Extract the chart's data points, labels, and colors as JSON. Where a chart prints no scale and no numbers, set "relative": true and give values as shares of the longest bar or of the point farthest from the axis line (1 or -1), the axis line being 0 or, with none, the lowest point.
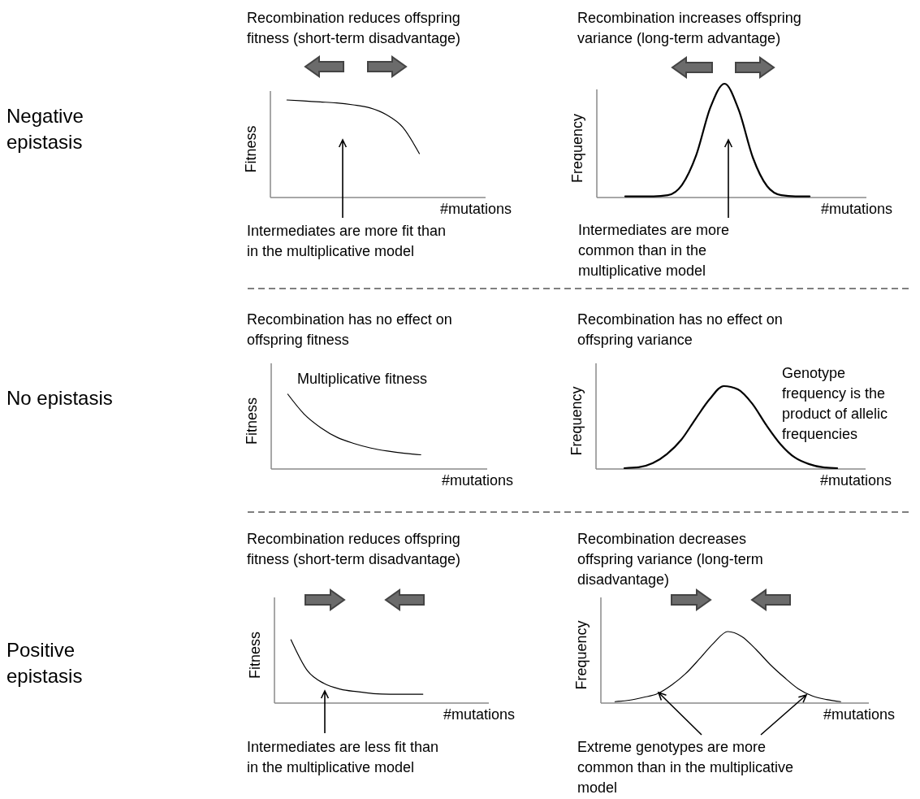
{
  "chart_data": [
    {
      "type": "line",
      "relative": true,
      "title": "Recombination reduces offspring\nfitness (short-term disadvantage)",
      "xlabel": "#mutations",
      "ylabel": "Fitness",
      "annotations": [
        "Negative\nepistasis",
        "Intermediates are more fit than\nin the multiplicative model"
      ],
      "categories": [
        null,
        null,
        null,
        null,
        null,
        null,
        null,
        null,
        null,
        null,
        null,
        null,
        null,
        null
      ],
      "series": [
        {
          "color": "#000000",
          "values": [
            null,
            1,
            0.99,
            0.98,
            0.97,
            0.95,
            0.92,
            0.85,
            0.72,
            0.45,
            null,
            null,
            null,
            null
          ]
        }
      ]
    },
    {
      "type": "line",
      "relative": true,
      "title": "Recombination increases offspring\nvariance (long-term advantage)",
      "xlabel": "#mutations",
      "ylabel": "Frequency",
      "annotations": [
        "Intermediates are more\ncommon than in the\nmultiplicative model"
      ],
      "categories": [
        null,
        null,
        null,
        null,
        null,
        null,
        null,
        null,
        null,
        null,
        null,
        null,
        null,
        null,
        null,
        null,
        null,
        null,
        null,
        null
      ],
      "series": [
        {
          "color": "#000000",
          "values": [
            null,
            null,
            0.01,
            0.01,
            0.01,
            0.02,
            0.11,
            0.37,
            0.79,
            1,
            0.77,
            0.35,
            0.1,
            0.02,
            0.01,
            0.01,
            null,
            null,
            null,
            null
          ]
        }
      ]
    },
    {
      "type": "line",
      "relative": true,
      "title": "Recombination has no effect on\noffspring fitness",
      "xlabel": "#mutations",
      "ylabel": "Fitness",
      "annotations": [
        "No epistasis",
        "Multiplicative fitness"
      ],
      "categories": [
        null,
        null,
        null,
        null,
        null,
        null,
        null,
        null,
        null,
        null,
        null,
        null,
        null,
        null
      ],
      "series": [
        {
          "color": "#000000",
          "values": [
            null,
            1,
            0.73,
            0.55,
            0.42,
            0.34,
            0.28,
            0.24,
            0.21,
            0.19,
            null,
            null,
            null,
            null
          ]
        }
      ]
    },
    {
      "type": "line",
      "relative": true,
      "title": "Recombination has no effect on\noffspring variance",
      "xlabel": "#mutations",
      "ylabel": "Frequency",
      "annotations": [
        "Genotype\nfrequency is the\nproduct of allelic\nfrequencies"
      ],
      "categories": [
        null,
        null,
        null,
        null,
        null,
        null,
        null,
        null,
        null,
        null,
        null,
        null,
        null,
        null,
        null,
        null,
        null,
        null,
        null,
        null
      ],
      "series": [
        {
          "color": "#000000",
          "values": [
            null,
            null,
            0.01,
            0.02,
            0.07,
            0.18,
            0.35,
            0.6,
            0.84,
            1,
            0.96,
            0.79,
            0.53,
            0.3,
            0.14,
            0.06,
            0.02,
            0.01,
            null,
            null
          ]
        }
      ]
    },
    {
      "type": "line",
      "relative": true,
      "title": "Recombination reduces offspring\nfitness (short-term disadvantage)",
      "xlabel": "#mutations",
      "ylabel": "Fitness",
      "annotations": [
        "Positive\nepistasis",
        "Intermediates are less fit than\nin the multiplicative model"
      ],
      "categories": [
        null,
        null,
        null,
        null,
        null,
        null,
        null,
        null,
        null,
        null,
        null,
        null,
        null,
        null
      ],
      "series": [
        {
          "color": "#000000",
          "values": [
            null,
            1,
            0.51,
            0.31,
            0.22,
            0.18,
            0.15,
            0.14,
            0.14,
            0.14,
            null,
            null,
            null,
            null
          ]
        }
      ]
    },
    {
      "type": "line",
      "relative": true,
      "title": "Recombination decreases\noffspring variance (long-term\ndisadvantage)",
      "xlabel": "#mutations",
      "ylabel": "Frequency",
      "annotations": [
        "Extreme genotypes are more\ncommon than in the multiplicative\nmodel"
      ],
      "categories": [
        null,
        null,
        null,
        null,
        null,
        null,
        null,
        null,
        null,
        null,
        null,
        null,
        null,
        null,
        null,
        null,
        null,
        null,
        null,
        null
      ],
      "series": [
        {
          "color": "#000000",
          "values": [
            null,
            0.02,
            0.04,
            0.08,
            0.13,
            0.25,
            0.41,
            0.62,
            0.84,
            1,
            0.93,
            0.75,
            0.54,
            0.36,
            0.2,
            0.1,
            0.05,
            0.02,
            null,
            null
          ]
        }
      ]
    }
  ]
}
